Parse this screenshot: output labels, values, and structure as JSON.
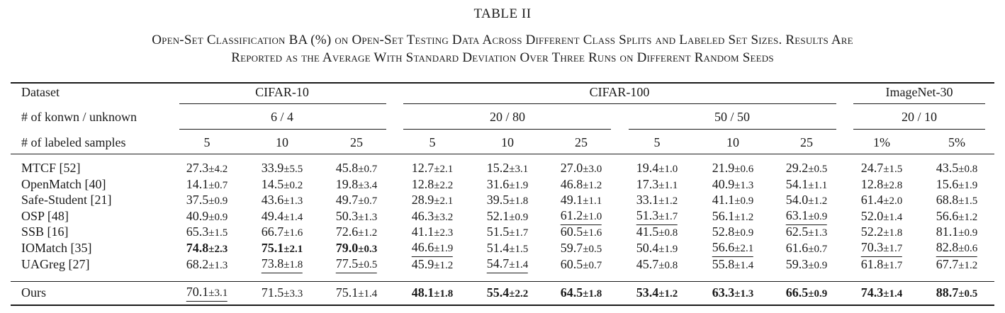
{
  "table": {
    "number": "TABLE II",
    "caption_line1": "Open-Set Classification BA (%) on Open-Set Testing Data Across Different Class Splits and Labeled Set Sizes. Results Are",
    "caption_line2": "Reported as the Average With Standard Deviation Over Three Runs on Different Random Seeds",
    "header": {
      "dataset_label": "Dataset",
      "known_label": "# of konwn / unknown",
      "samples_label": "# of labeled samples",
      "datasets": [
        "CIFAR-10",
        "CIFAR-100",
        "ImageNet-30"
      ],
      "splits": [
        "6 / 4",
        "20 / 80",
        "50 / 50",
        "20 / 10"
      ],
      "samples": [
        "5",
        "10",
        "25",
        "5",
        "10",
        "25",
        "5",
        "10",
        "25",
        "1%",
        "5%"
      ]
    },
    "rows": [
      {
        "method": "MTCF [52]",
        "cells": [
          {
            "v": "27.3",
            "s": "±4.2"
          },
          {
            "v": "33.9",
            "s": "±5.5"
          },
          {
            "v": "45.8",
            "s": "±0.7"
          },
          {
            "v": "12.7",
            "s": "±2.1"
          },
          {
            "v": "15.2",
            "s": "±3.1"
          },
          {
            "v": "27.0",
            "s": "±3.0"
          },
          {
            "v": "19.4",
            "s": "±1.0"
          },
          {
            "v": "21.9",
            "s": "±0.6"
          },
          {
            "v": "29.2",
            "s": "±0.5"
          },
          {
            "v": "24.7",
            "s": "±1.5"
          },
          {
            "v": "43.5",
            "s": "±0.8"
          }
        ]
      },
      {
        "method": "OpenMatch [40]",
        "cells": [
          {
            "v": "14.1",
            "s": "±0.7"
          },
          {
            "v": "14.5",
            "s": "±0.2"
          },
          {
            "v": "19.8",
            "s": "±3.4"
          },
          {
            "v": "12.8",
            "s": "±2.2"
          },
          {
            "v": "31.6",
            "s": "±1.9"
          },
          {
            "v": "46.8",
            "s": "±1.2"
          },
          {
            "v": "17.3",
            "s": "±1.1"
          },
          {
            "v": "40.9",
            "s": "±1.3"
          },
          {
            "v": "54.1",
            "s": "±1.1"
          },
          {
            "v": "12.8",
            "s": "±2.8"
          },
          {
            "v": "15.6",
            "s": "±1.9"
          }
        ]
      },
      {
        "method": "Safe-Student [21]",
        "cells": [
          {
            "v": "37.5",
            "s": "±0.9"
          },
          {
            "v": "43.6",
            "s": "±1.3"
          },
          {
            "v": "49.7",
            "s": "±0.7"
          },
          {
            "v": "28.9",
            "s": "±2.1"
          },
          {
            "v": "39.5",
            "s": "±1.8"
          },
          {
            "v": "49.1",
            "s": "±1.1"
          },
          {
            "v": "33.1",
            "s": "±1.2"
          },
          {
            "v": "41.1",
            "s": "±0.9"
          },
          {
            "v": "54.0",
            "s": "±1.2"
          },
          {
            "v": "61.4",
            "s": "±2.0"
          },
          {
            "v": "68.8",
            "s": "±1.5"
          }
        ]
      },
      {
        "method": "OSP [48]",
        "cells": [
          {
            "v": "40.9",
            "s": "±0.9"
          },
          {
            "v": "49.4",
            "s": "±1.4"
          },
          {
            "v": "50.3",
            "s": "±1.3"
          },
          {
            "v": "46.3",
            "s": "±3.2"
          },
          {
            "v": "52.1",
            "s": "±0.9"
          },
          {
            "v": "61.2",
            "s": "±1.0",
            "u": true
          },
          {
            "v": "51.3",
            "s": "±1.7",
            "u": true
          },
          {
            "v": "56.1",
            "s": "±1.2"
          },
          {
            "v": "63.1",
            "s": "±0.9",
            "u": true
          },
          {
            "v": "52.0",
            "s": "±1.4"
          },
          {
            "v": "56.6",
            "s": "±1.2"
          }
        ]
      },
      {
        "method": "SSB [16]",
        "cells": [
          {
            "v": "65.3",
            "s": "±1.5"
          },
          {
            "v": "66.7",
            "s": "±1.6"
          },
          {
            "v": "72.6",
            "s": "±1.2"
          },
          {
            "v": "41.1",
            "s": "±2.3"
          },
          {
            "v": "51.5",
            "s": "±1.7"
          },
          {
            "v": "60.5",
            "s": "±1.6"
          },
          {
            "v": "41.5",
            "s": "±0.8"
          },
          {
            "v": "52.8",
            "s": "±0.9"
          },
          {
            "v": "62.5",
            "s": "±1.3"
          },
          {
            "v": "52.2",
            "s": "±1.8"
          },
          {
            "v": "81.1",
            "s": "±0.9"
          }
        ]
      },
      {
        "method": "IOMatch [35]",
        "cells": [
          {
            "v": "74.8",
            "s": "±2.3",
            "b": true
          },
          {
            "v": "75.1",
            "s": "±2.1",
            "b": true
          },
          {
            "v": "79.0",
            "s": "±0.3",
            "b": true
          },
          {
            "v": "46.6",
            "s": "±1.9",
            "u": true
          },
          {
            "v": "51.4",
            "s": "±1.5"
          },
          {
            "v": "59.7",
            "s": "±0.5"
          },
          {
            "v": "50.4",
            "s": "±1.9"
          },
          {
            "v": "56.6",
            "s": "±2.1",
            "u": true
          },
          {
            "v": "61.6",
            "s": "±0.7"
          },
          {
            "v": "70.3",
            "s": "±1.7",
            "u": true
          },
          {
            "v": "82.8",
            "s": "±0.6",
            "u": true
          }
        ]
      },
      {
        "method": "UAGreg [27]",
        "cells": [
          {
            "v": "68.2",
            "s": "±1.3"
          },
          {
            "v": "73.8",
            "s": "±1.8",
            "u": true
          },
          {
            "v": "77.5",
            "s": "±0.5",
            "u": true
          },
          {
            "v": "45.9",
            "s": "±1.2"
          },
          {
            "v": "54.7",
            "s": "±1.4",
            "u": true
          },
          {
            "v": "60.5",
            "s": "±0.7"
          },
          {
            "v": "45.7",
            "s": "±0.8"
          },
          {
            "v": "55.8",
            "s": "±1.4"
          },
          {
            "v": "59.3",
            "s": "±0.9"
          },
          {
            "v": "61.8",
            "s": "±1.7"
          },
          {
            "v": "67.7",
            "s": "±1.2"
          }
        ]
      }
    ],
    "ours": {
      "method": "Ours",
      "cells": [
        {
          "v": "70.1",
          "s": "±3.1",
          "u": true
        },
        {
          "v": "71.5",
          "s": "±3.3"
        },
        {
          "v": "75.1",
          "s": "±1.4"
        },
        {
          "v": "48.1",
          "s": "±1.8",
          "b": true
        },
        {
          "v": "55.4",
          "s": "±2.2",
          "b": true
        },
        {
          "v": "64.5",
          "s": "±1.8",
          "b": true
        },
        {
          "v": "53.4",
          "s": "±1.2",
          "b": true
        },
        {
          "v": "63.3",
          "s": "±1.3",
          "b": true
        },
        {
          "v": "66.5",
          "s": "±0.9",
          "b": true
        },
        {
          "v": "74.3",
          "s": "±1.4",
          "b": true
        },
        {
          "v": "88.7",
          "s": "±0.5",
          "b": true
        }
      ]
    }
  }
}
